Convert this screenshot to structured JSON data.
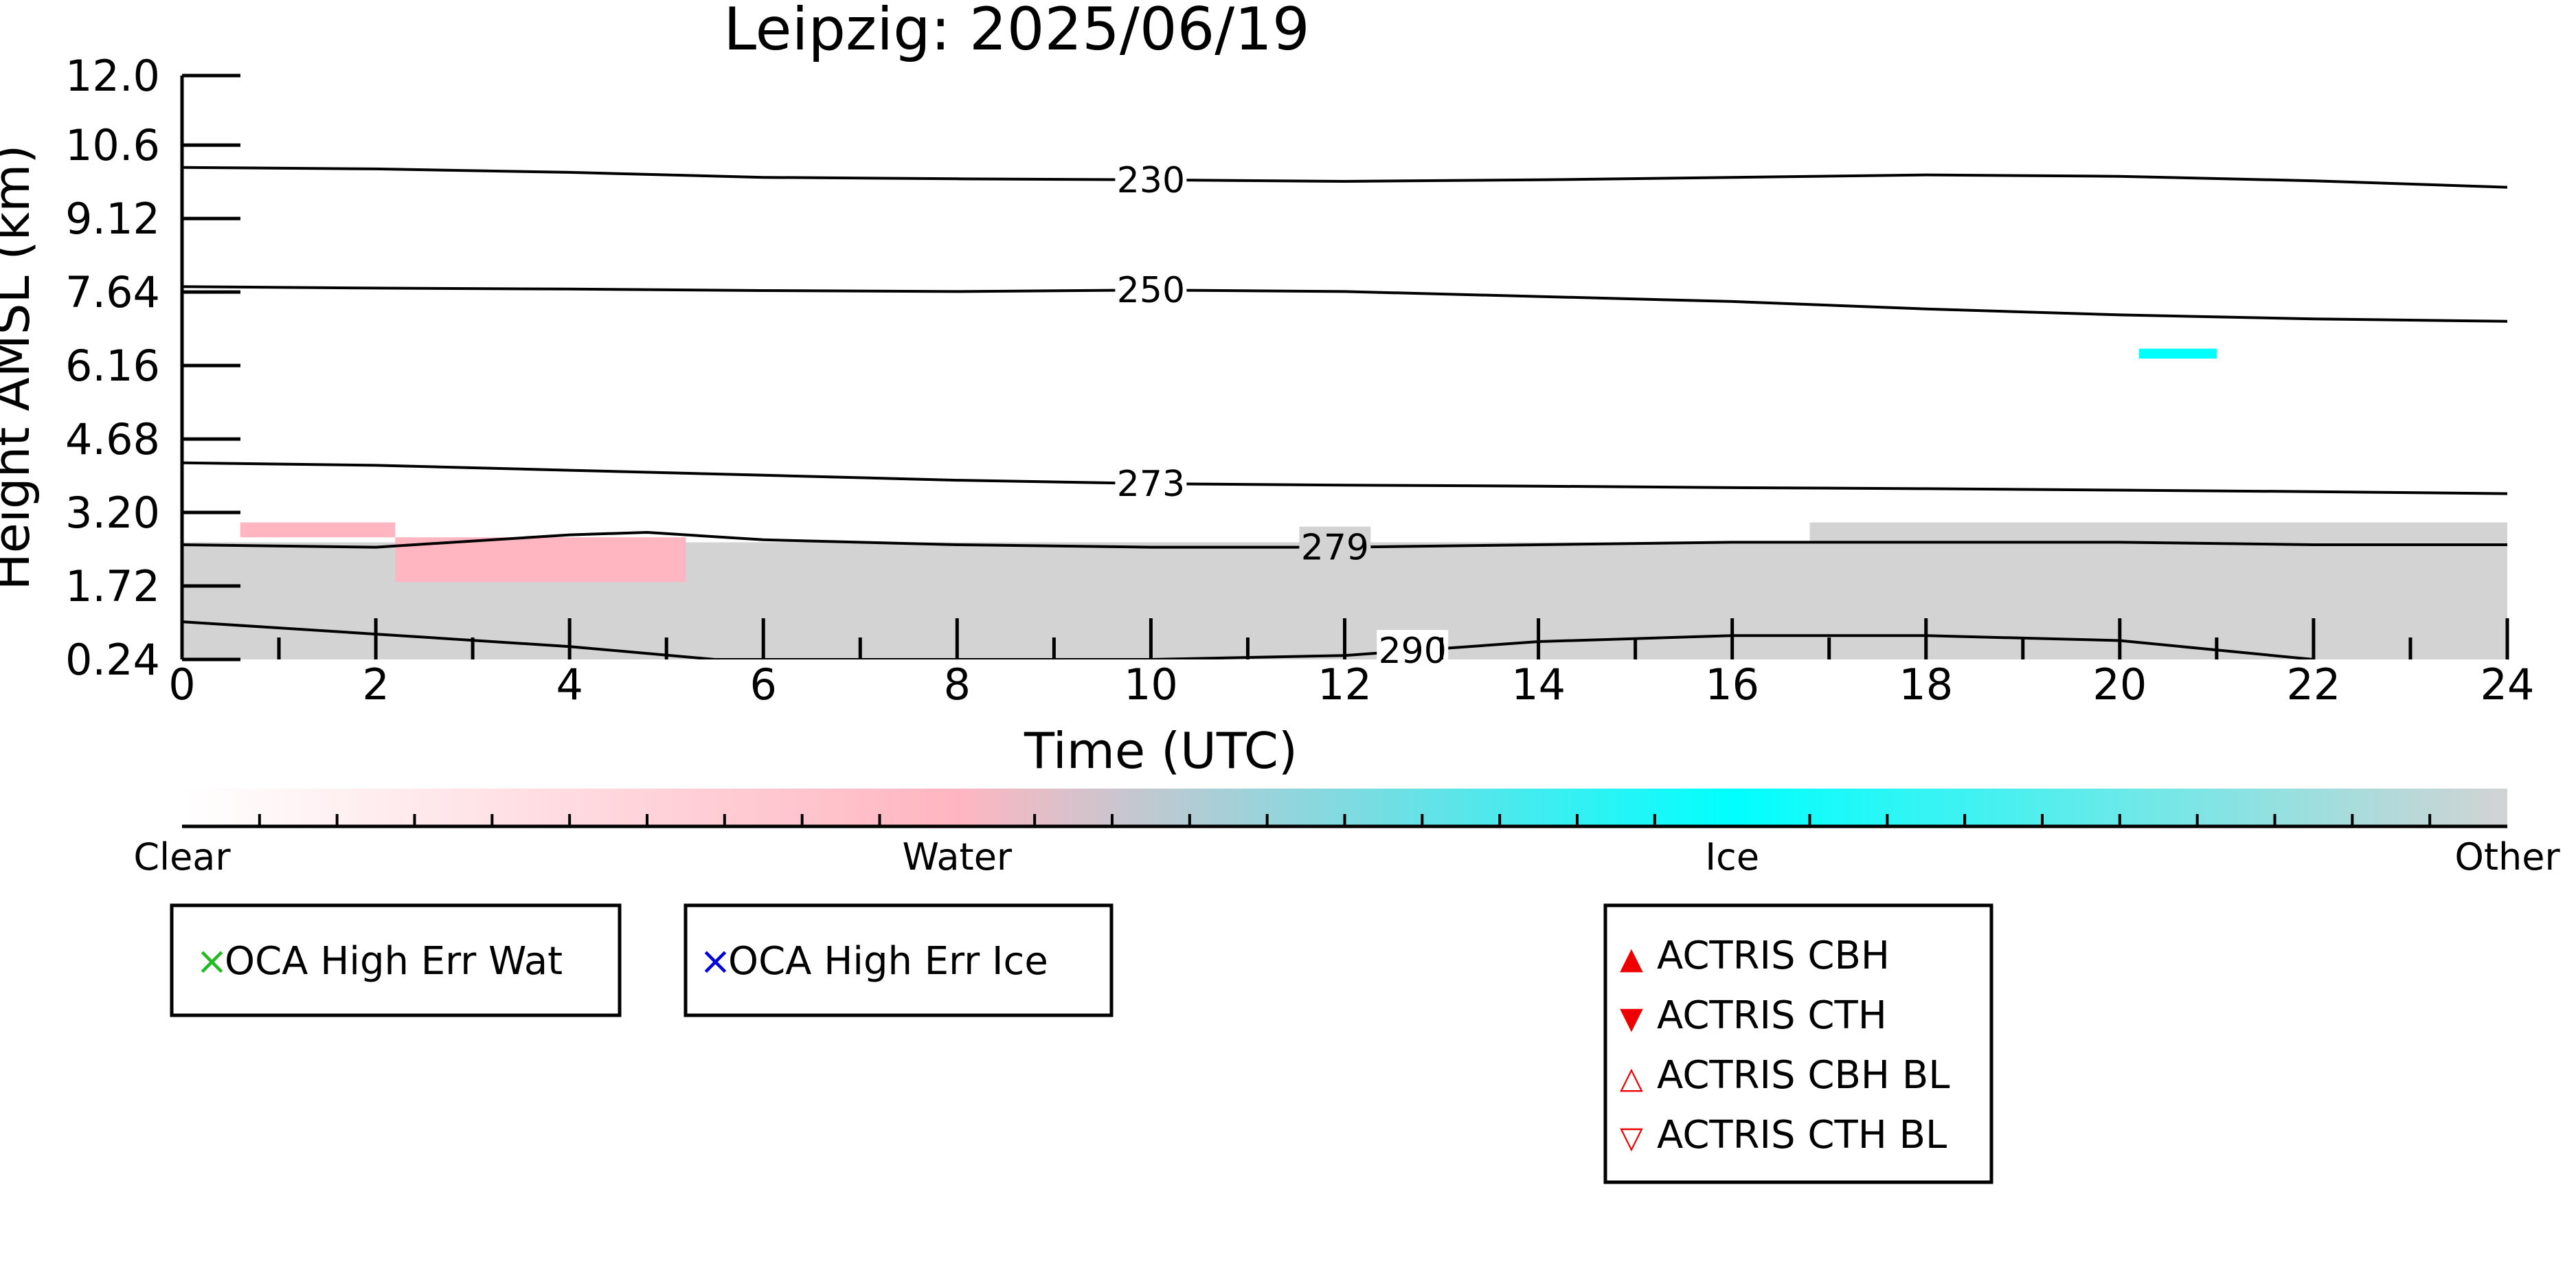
{
  "chart_data": {
    "type": "heatmap",
    "title": "Leipzig: 2025/06/19",
    "xlabel": "Time (UTC)",
    "ylabel": "Height AMSL (km)",
    "xlim": [
      0,
      24
    ],
    "ylim": [
      0.24,
      12.0
    ],
    "x_ticks": [
      "0",
      "2",
      "4",
      "6",
      "8",
      "10",
      "12",
      "14",
      "16",
      "18",
      "20",
      "22",
      "24"
    ],
    "y_ticks": [
      "0.24",
      "1.72",
      "3.20",
      "4.68",
      "6.16",
      "7.64",
      "9.12",
      "10.6",
      "12.0"
    ],
    "categories": [
      "Clear",
      "Water",
      "Ice",
      "Other"
    ],
    "colors": {
      "Clear": "#ffffff",
      "Water": "#ffb6c1",
      "Ice": "#00ffff",
      "Other": "#d3d3d3"
    },
    "cloud_regions": [
      {
        "class": "Other",
        "x": [
          0,
          24
        ],
        "y": [
          0.24,
          2.6
        ]
      },
      {
        "class": "Other",
        "x": [
          16.8,
          24
        ],
        "y": [
          2.6,
          3.0
        ]
      },
      {
        "class": "Water",
        "x": [
          0.6,
          2.2
        ],
        "y": [
          2.7,
          3.0
        ]
      },
      {
        "class": "Water",
        "x": [
          2.2,
          5.2
        ],
        "y": [
          1.8,
          2.7
        ]
      },
      {
        "class": "Ice",
        "x": [
          20.2,
          21.0
        ],
        "y": [
          6.3,
          6.5
        ]
      }
    ],
    "contours": [
      {
        "label": "230",
        "x": [
          0,
          2,
          4,
          6,
          8,
          10,
          12,
          14,
          16,
          18,
          20,
          22,
          24
        ],
        "y": [
          10.15,
          10.12,
          10.05,
          9.95,
          9.92,
          9.9,
          9.87,
          9.9,
          9.95,
          10.0,
          9.97,
          9.88,
          9.75
        ]
      },
      {
        "label": "250",
        "x": [
          0,
          2,
          4,
          6,
          8,
          10,
          12,
          14,
          16,
          18,
          20,
          22,
          24
        ],
        "y": [
          7.75,
          7.72,
          7.7,
          7.67,
          7.65,
          7.68,
          7.65,
          7.55,
          7.45,
          7.3,
          7.18,
          7.1,
          7.05
        ]
      },
      {
        "label": "273",
        "x": [
          0,
          2,
          4,
          6,
          8,
          10,
          12,
          14,
          16,
          18,
          20,
          22,
          24
        ],
        "y": [
          4.2,
          4.15,
          4.05,
          3.95,
          3.85,
          3.78,
          3.75,
          3.73,
          3.7,
          3.68,
          3.65,
          3.62,
          3.58
        ]
      },
      {
        "label": "279",
        "x": [
          0,
          2,
          4,
          4.8,
          6,
          8,
          10,
          11,
          12,
          14,
          16,
          18,
          20,
          22,
          24
        ],
        "y": [
          2.55,
          2.5,
          2.75,
          2.8,
          2.65,
          2.55,
          2.5,
          2.5,
          2.5,
          2.55,
          2.6,
          2.6,
          2.6,
          2.55,
          2.55
        ]
      },
      {
        "label": "290",
        "x": [
          0,
          2,
          4,
          5.5,
          10,
          12,
          14,
          16,
          18,
          20,
          22
        ],
        "y": [
          1.0,
          0.75,
          0.5,
          0.24,
          0.24,
          0.32,
          0.6,
          0.72,
          0.72,
          0.62,
          0.24
        ]
      }
    ],
    "legend": {
      "oca": [
        {
          "marker": "×",
          "color": "#22bb22",
          "label": "OCA High Err Wat"
        },
        {
          "marker": "×",
          "color": "#0000dd",
          "label": "OCA High Err Ice"
        }
      ],
      "actris": [
        {
          "marker": "▲",
          "color": "#ee0000",
          "label": "ACTRIS CBH"
        },
        {
          "marker": "▼",
          "color": "#ee0000",
          "label": "ACTRIS CTH"
        },
        {
          "marker": "△",
          "color": "#ee0000",
          "label": "ACTRIS CBH BL"
        },
        {
          "marker": "▽",
          "color": "#ee0000",
          "label": "ACTRIS CTH BL"
        }
      ]
    }
  }
}
